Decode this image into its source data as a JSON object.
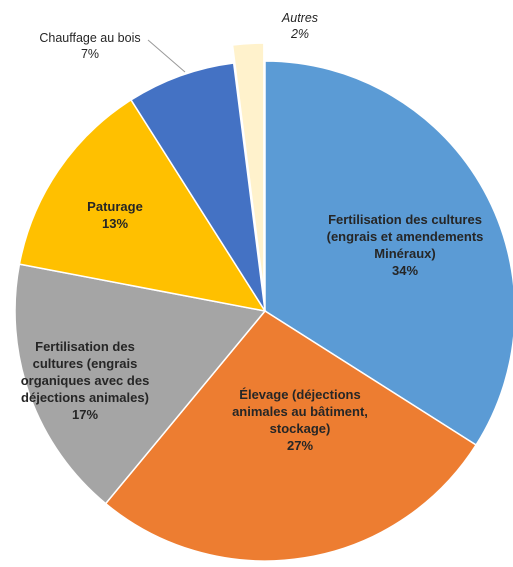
{
  "chart_data": {
    "type": "pie",
    "categories": [
      "Fertilisation des cultures (engrais et amendements Minéraux)",
      "Élevage (déjections animales au bâtiment, stockage)",
      "Fertilisation des cultures (engrais organiques avec des déjections animales)",
      "Paturage",
      "Chauffage au bois",
      "Autres"
    ],
    "values": [
      34,
      27,
      17,
      13,
      7,
      2
    ],
    "value_labels": [
      "34%",
      "27%",
      "17%",
      "13%",
      "7%",
      "2%"
    ],
    "colors": [
      "#5b9bd5",
      "#ed7d31",
      "#a5a5a5",
      "#ffc000",
      "#4472c4",
      "#fff2cc"
    ]
  }
}
